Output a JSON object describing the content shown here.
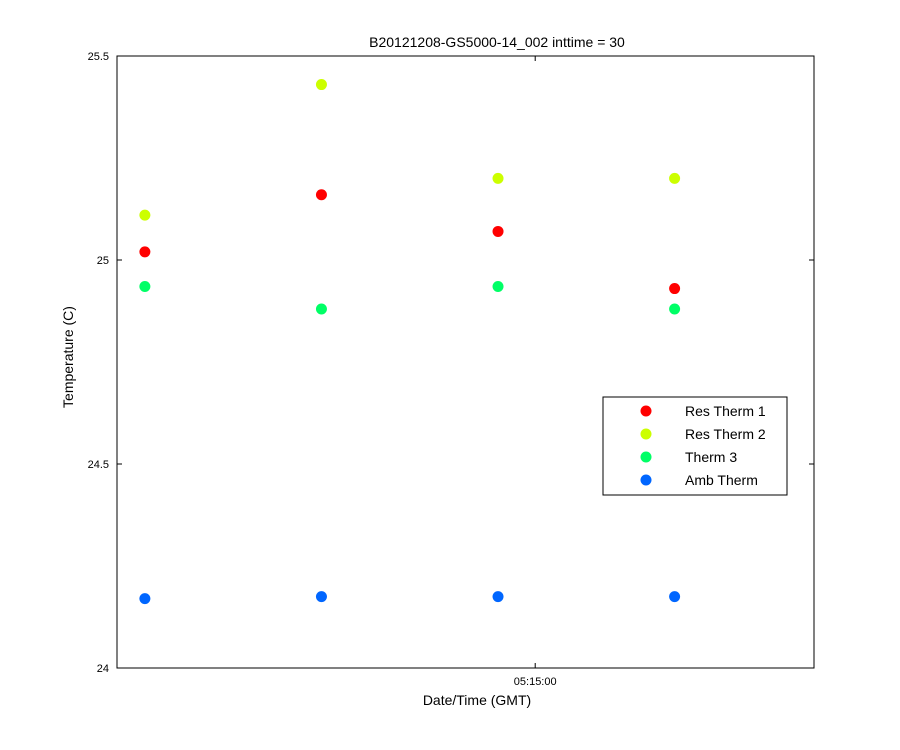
{
  "chart_data": {
    "type": "scatter",
    "title": "B20121208-GS5000-14_002 inttime = 30",
    "xlabel": "Date/Time (GMT)",
    "ylabel": "Temperature (C)",
    "ylim": [
      24,
      25.5
    ],
    "yticks": [
      24,
      24.5,
      25,
      25.5
    ],
    "ytick_labels": [
      "24",
      "24.5",
      "25",
      "25.5"
    ],
    "xlim": [
      "05:14:15",
      "05:15:30"
    ],
    "xticks": [
      "05:15:00"
    ],
    "xtick_labels": [
      "05:15:00"
    ],
    "x": [
      "05:14:18",
      "05:14:37",
      "05:14:56",
      "05:15:15"
    ],
    "grid": false,
    "legend_position": "right",
    "series": [
      {
        "name": "Res Therm 1",
        "color": "#ff0000",
        "values": [
          25.02,
          25.16,
          25.07,
          24.93
        ]
      },
      {
        "name": "Res Therm 2",
        "color": "#ccff00",
        "values": [
          25.11,
          25.43,
          25.2,
          25.2
        ]
      },
      {
        "name": "Therm 3",
        "color": "#00ff66",
        "values": [
          24.935,
          24.88,
          24.935,
          24.88
        ]
      },
      {
        "name": "Amb Therm",
        "color": "#0066ff",
        "values": [
          24.17,
          24.175,
          24.175,
          24.175
        ]
      }
    ]
  }
}
